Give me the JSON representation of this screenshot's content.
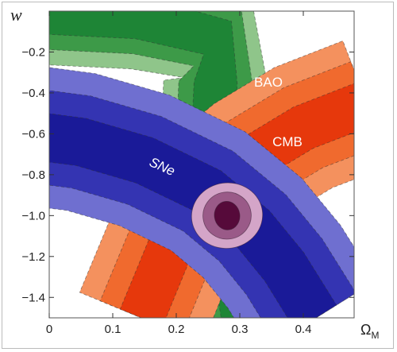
{
  "chart_data": {
    "type": "contour",
    "xlabel": "Ω",
    "xlabel_sub": "M",
    "ylabel": "w",
    "xlim": [
      0,
      0.48
    ],
    "ylim": [
      -1.5,
      0
    ],
    "xticks": [
      0,
      0.1,
      0.2,
      0.3,
      0.4
    ],
    "xtick_labels": [
      "0",
      "0.1",
      "0.2",
      "0.3",
      "0.4"
    ],
    "yticks": [
      -0.2,
      -0.4,
      -0.6,
      -0.8,
      -1.0,
      -1.2,
      -1.4
    ],
    "ytick_labels": [
      "−0.2",
      "−0.4",
      "−0.6",
      "−0.8",
      "−1.0",
      "−1.2",
      "−1.4"
    ],
    "grid": false,
    "regions": [
      {
        "name": "BAO",
        "label": "BAO",
        "label_pos": [
          0.345,
          -0.37
        ],
        "colors": [
          "#8fc58a",
          "#3d9a48",
          "#1e8536"
        ],
        "spine": [
          [
            -0.02,
            -0.005
          ],
          [
            0.14,
            -0.03
          ],
          [
            0.265,
            -0.13
          ],
          [
            0.262,
            -0.35
          ],
          [
            0.258,
            -0.6
          ],
          [
            0.27,
            -0.9
          ],
          [
            0.29,
            -1.2
          ],
          [
            0.305,
            -1.5
          ]
        ],
        "half_widths": [
          0.082,
          0.058,
          0.034
        ]
      },
      {
        "name": "CMB",
        "label": "CMB",
        "label_pos": [
          0.375,
          -0.66
        ],
        "colors": [
          "#f4915e",
          "#f06a2e",
          "#e6380c"
        ],
        "spine": [
          [
            0.145,
            -1.5
          ],
          [
            0.19,
            -1.16
          ],
          [
            0.25,
            -0.9
          ],
          [
            0.32,
            -0.72
          ],
          [
            0.4,
            -0.57
          ],
          [
            0.5,
            -0.45
          ]
        ],
        "half_widths": [
          0.105,
          0.07,
          0.036
        ]
      },
      {
        "name": "SNe",
        "label": "SNe",
        "label_pos": [
          0.175,
          -0.78
        ],
        "colors": [
          "#6f6fd0",
          "#3434b2",
          "#1a1a98"
        ],
        "spine": [
          [
            -0.05,
            -0.6
          ],
          [
            0.05,
            -0.64
          ],
          [
            0.15,
            -0.73
          ],
          [
            0.25,
            -0.88
          ],
          [
            0.32,
            -1.06
          ],
          [
            0.37,
            -1.25
          ],
          [
            0.4,
            -1.4
          ],
          [
            0.42,
            -1.5
          ]
        ],
        "half_widths": [
          0.11,
          0.074,
          0.038
        ]
      }
    ],
    "combined": {
      "center": [
        0.28,
        -1.0
      ],
      "colors": [
        "#d4a5c8",
        "#9a5a88",
        "#560a3a"
      ],
      "radii": [
        [
          0.056,
          0.16
        ],
        [
          0.038,
          0.115
        ],
        [
          0.02,
          0.07
        ]
      ],
      "rotation_deg": -8
    }
  }
}
